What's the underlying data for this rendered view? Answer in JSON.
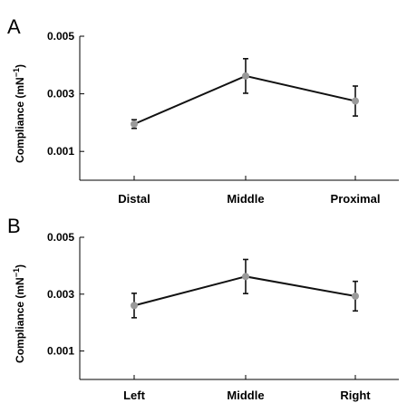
{
  "chart_data": [
    {
      "type": "line",
      "panel_label": "A",
      "ylabel": "Compliance (mN",
      "ylabel_sup": "−1",
      "ylabel_close": ")",
      "categories": [
        "Distal",
        "Middle",
        "Proximal"
      ],
      "values": [
        0.00195,
        0.00362,
        0.00275
      ],
      "errors": [
        0.00015,
        0.0006,
        0.00052
      ],
      "ylim": [
        0,
        0.005
      ],
      "yticks": [
        0.001,
        0.003,
        0.005
      ],
      "ytick_labels": [
        "0.001",
        "0.003",
        "0.005"
      ]
    },
    {
      "type": "line",
      "panel_label": "B",
      "ylabel": "Compliance (mN",
      "ylabel_sup": "−1",
      "ylabel_close": ")",
      "categories": [
        "Left",
        "Middle",
        "Right"
      ],
      "values": [
        0.0026,
        0.00362,
        0.00293
      ],
      "errors": [
        0.00043,
        0.0006,
        0.00052
      ],
      "ylim": [
        0,
        0.005
      ],
      "yticks": [
        0.001,
        0.003,
        0.005
      ],
      "ytick_labels": [
        "0.001",
        "0.003",
        "0.005"
      ]
    }
  ],
  "colors": {
    "line": "#111111",
    "marker": "#9a9a9a"
  }
}
